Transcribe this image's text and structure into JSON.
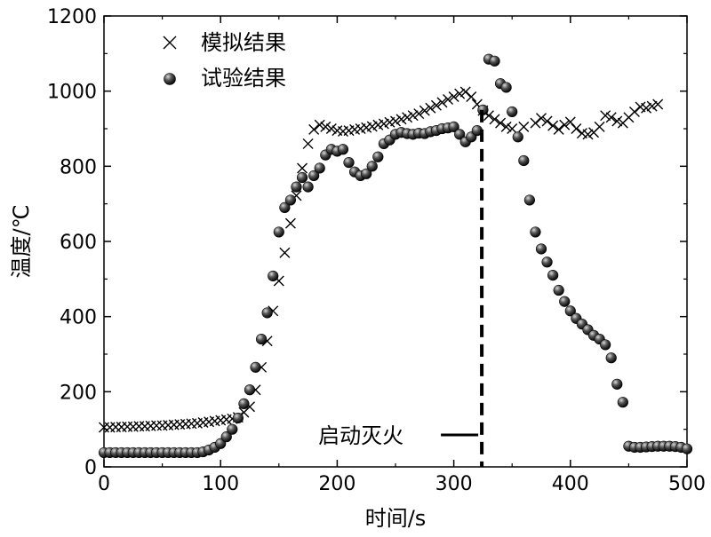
{
  "chart_data": {
    "type": "scatter",
    "xlabel": "时间/s",
    "ylabel": "温度/℃",
    "xlim": [
      0,
      500
    ],
    "ylim": [
      0,
      1200
    ],
    "xticks": [
      0,
      100,
      200,
      300,
      400,
      500
    ],
    "yticks": [
      0,
      200,
      400,
      600,
      800,
      1000,
      1200
    ],
    "grid": false,
    "legend_position": "top-left",
    "annotation": {
      "text": "启动灭火",
      "x": 324
    },
    "series": [
      {
        "name": "模拟结果",
        "marker": "x",
        "color": "#000000",
        "points": [
          [
            0,
            105
          ],
          [
            5,
            105
          ],
          [
            10,
            106
          ],
          [
            15,
            106
          ],
          [
            20,
            107
          ],
          [
            25,
            107
          ],
          [
            30,
            108
          ],
          [
            35,
            108
          ],
          [
            40,
            109
          ],
          [
            45,
            110
          ],
          [
            50,
            110
          ],
          [
            55,
            111
          ],
          [
            60,
            112
          ],
          [
            65,
            113
          ],
          [
            70,
            114
          ],
          [
            75,
            115
          ],
          [
            80,
            116
          ],
          [
            85,
            118
          ],
          [
            90,
            120
          ],
          [
            95,
            122
          ],
          [
            100,
            124
          ],
          [
            105,
            126
          ],
          [
            110,
            128
          ],
          [
            115,
            132
          ],
          [
            120,
            145
          ],
          [
            125,
            160
          ],
          [
            130,
            205
          ],
          [
            135,
            265
          ],
          [
            140,
            335
          ],
          [
            145,
            415
          ],
          [
            150,
            495
          ],
          [
            155,
            570
          ],
          [
            160,
            648
          ],
          [
            165,
            722
          ],
          [
            170,
            795
          ],
          [
            175,
            860
          ],
          [
            180,
            898
          ],
          [
            185,
            910
          ],
          [
            190,
            905
          ],
          [
            195,
            900
          ],
          [
            200,
            895
          ],
          [
            205,
            893
          ],
          [
            210,
            895
          ],
          [
            215,
            898
          ],
          [
            220,
            900
          ],
          [
            225,
            903
          ],
          [
            230,
            906
          ],
          [
            235,
            910
          ],
          [
            240,
            913
          ],
          [
            245,
            917
          ],
          [
            250,
            920
          ],
          [
            255,
            925
          ],
          [
            260,
            930
          ],
          [
            265,
            935
          ],
          [
            270,
            940
          ],
          [
            275,
            948
          ],
          [
            280,
            955
          ],
          [
            285,
            962
          ],
          [
            290,
            970
          ],
          [
            295,
            978
          ],
          [
            300,
            985
          ],
          [
            305,
            993
          ],
          [
            310,
            998
          ],
          [
            315,
            985
          ],
          [
            320,
            965
          ],
          [
            325,
            948
          ],
          [
            330,
            935
          ],
          [
            335,
            925
          ],
          [
            340,
            915
          ],
          [
            345,
            905
          ],
          [
            350,
            900
          ],
          [
            360,
            905
          ],
          [
            370,
            915
          ],
          [
            375,
            928
          ],
          [
            380,
            920
          ],
          [
            385,
            908
          ],
          [
            390,
            898
          ],
          [
            395,
            910
          ],
          [
            400,
            918
          ],
          [
            405,
            900
          ],
          [
            410,
            888
          ],
          [
            415,
            885
          ],
          [
            420,
            890
          ],
          [
            425,
            905
          ],
          [
            430,
            935
          ],
          [
            435,
            930
          ],
          [
            440,
            920
          ],
          [
            445,
            915
          ],
          [
            450,
            930
          ],
          [
            455,
            945
          ],
          [
            460,
            958
          ],
          [
            465,
            955
          ],
          [
            470,
            960
          ],
          [
            475,
            965
          ]
        ]
      },
      {
        "name": "试验结果",
        "marker": "circle",
        "color": "#222222",
        "points": [
          [
            0,
            38
          ],
          [
            5,
            38
          ],
          [
            10,
            38
          ],
          [
            15,
            38
          ],
          [
            20,
            38
          ],
          [
            25,
            38
          ],
          [
            30,
            38
          ],
          [
            35,
            38
          ],
          [
            40,
            38
          ],
          [
            45,
            38
          ],
          [
            50,
            38
          ],
          [
            55,
            38
          ],
          [
            60,
            38
          ],
          [
            65,
            38
          ],
          [
            70,
            38
          ],
          [
            75,
            38
          ],
          [
            80,
            38
          ],
          [
            85,
            40
          ],
          [
            90,
            45
          ],
          [
            95,
            52
          ],
          [
            100,
            62
          ],
          [
            105,
            80
          ],
          [
            110,
            100
          ],
          [
            115,
            130
          ],
          [
            120,
            168
          ],
          [
            125,
            205
          ],
          [
            130,
            265
          ],
          [
            135,
            340
          ],
          [
            140,
            410
          ],
          [
            145,
            508
          ],
          [
            150,
            625
          ],
          [
            155,
            690
          ],
          [
            160,
            710
          ],
          [
            165,
            745
          ],
          [
            170,
            770
          ],
          [
            175,
            745
          ],
          [
            180,
            775
          ],
          [
            185,
            795
          ],
          [
            190,
            830
          ],
          [
            195,
            845
          ],
          [
            200,
            840
          ],
          [
            205,
            845
          ],
          [
            210,
            810
          ],
          [
            215,
            785
          ],
          [
            220,
            775
          ],
          [
            225,
            780
          ],
          [
            230,
            800
          ],
          [
            235,
            825
          ],
          [
            240,
            860
          ],
          [
            245,
            870
          ],
          [
            250,
            885
          ],
          [
            255,
            890
          ],
          [
            260,
            887
          ],
          [
            265,
            885
          ],
          [
            270,
            888
          ],
          [
            275,
            887
          ],
          [
            280,
            892
          ],
          [
            285,
            895
          ],
          [
            290,
            900
          ],
          [
            295,
            902
          ],
          [
            300,
            905
          ],
          [
            305,
            885
          ],
          [
            310,
            865
          ],
          [
            315,
            878
          ],
          [
            320,
            895
          ],
          [
            325,
            950
          ],
          [
            330,
            1085
          ],
          [
            335,
            1080
          ],
          [
            340,
            1020
          ],
          [
            345,
            1010
          ],
          [
            350,
            945
          ],
          [
            355,
            878
          ],
          [
            360,
            815
          ],
          [
            365,
            710
          ],
          [
            370,
            625
          ],
          [
            375,
            580
          ],
          [
            380,
            545
          ],
          [
            385,
            510
          ],
          [
            390,
            470
          ],
          [
            395,
            440
          ],
          [
            400,
            415
          ],
          [
            405,
            395
          ],
          [
            410,
            380
          ],
          [
            415,
            365
          ],
          [
            420,
            350
          ],
          [
            425,
            340
          ],
          [
            430,
            325
          ],
          [
            435,
            290
          ],
          [
            440,
            220
          ],
          [
            445,
            172
          ],
          [
            450,
            55
          ],
          [
            455,
            52
          ],
          [
            460,
            52
          ],
          [
            465,
            53
          ],
          [
            470,
            54
          ],
          [
            475,
            55
          ],
          [
            480,
            55
          ],
          [
            485,
            55
          ],
          [
            490,
            54
          ],
          [
            495,
            52
          ],
          [
            500,
            48
          ]
        ]
      }
    ]
  }
}
